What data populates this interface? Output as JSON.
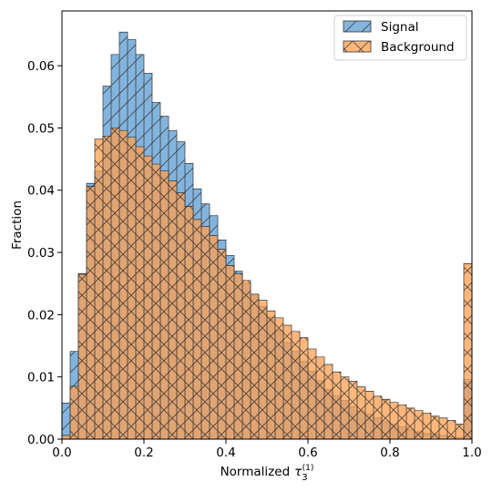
{
  "chart_data": {
    "type": "histogram",
    "xlabel": "Normalized",
    "xlabel_symbol": "τ",
    "xlabel_sub": "3",
    "xlabel_sup": "(1)",
    "ylabel": "Fraction",
    "xlim": [
      0.0,
      1.0
    ],
    "ylim": [
      0.0,
      0.0688
    ],
    "xticks": [
      0.0,
      0.2,
      0.4,
      0.6,
      0.8,
      1.0
    ],
    "xtick_labels": [
      "0.0",
      "0.2",
      "0.4",
      "0.6",
      "0.8",
      "1.0"
    ],
    "yticks": [
      0.0,
      0.01,
      0.02,
      0.03,
      0.04,
      0.05,
      0.06
    ],
    "ytick_labels": [
      "0.00",
      "0.01",
      "0.02",
      "0.03",
      "0.04",
      "0.05",
      "0.06"
    ],
    "legend_position": "top-right",
    "bins": 50,
    "series": [
      {
        "name": "Signal",
        "color": "#5a9bd1",
        "alpha": 0.75,
        "hatch": "/",
        "values": [
          0.0058,
          0.0141,
          0.0266,
          0.0411,
          0.0431,
          0.0567,
          0.0618,
          0.0654,
          0.0642,
          0.0618,
          0.0588,
          0.0541,
          0.0519,
          0.0496,
          0.0478,
          0.0443,
          0.0402,
          0.0378,
          0.0359,
          0.032,
          0.0295,
          0.027,
          0.025,
          0.0232,
          0.0213,
          0.0196,
          0.0175,
          0.0155,
          0.0141,
          0.0125,
          0.0109,
          0.0094,
          0.008,
          0.007,
          0.0062,
          0.0052,
          0.0045,
          0.004,
          0.0034,
          0.0028,
          0.0024,
          0.002,
          0.0015,
          0.0012,
          0.0009,
          0.0008,
          0.0006,
          0.0004,
          0.0002,
          0.0096
        ]
      },
      {
        "name": "Background",
        "color": "#ff9f4f",
        "alpha": 0.75,
        "hatch": "x",
        "values": [
          0.0006,
          0.0085,
          0.0265,
          0.0406,
          0.0482,
          0.0487,
          0.05,
          0.0496,
          0.0485,
          0.047,
          0.0455,
          0.0442,
          0.0431,
          0.0415,
          0.0396,
          0.0374,
          0.0353,
          0.0342,
          0.0327,
          0.0305,
          0.0279,
          0.0266,
          0.0255,
          0.0233,
          0.0223,
          0.0206,
          0.0195,
          0.0183,
          0.0173,
          0.0163,
          0.0145,
          0.0132,
          0.012,
          0.0108,
          0.01,
          0.0093,
          0.0084,
          0.0077,
          0.0069,
          0.0064,
          0.0059,
          0.0055,
          0.005,
          0.0046,
          0.0042,
          0.0037,
          0.0034,
          0.003,
          0.0024,
          0.0282
        ]
      }
    ]
  }
}
